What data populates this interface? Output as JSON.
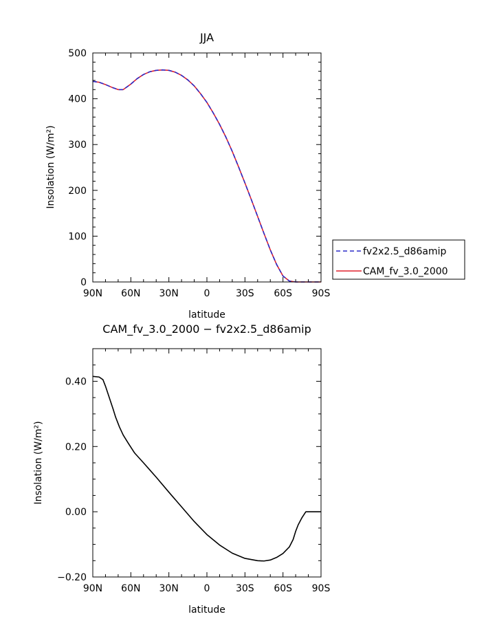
{
  "chart_data": [
    {
      "type": "line",
      "title": "JJA",
      "xlabel": "latitude",
      "ylabel": "Insolation (W/m²)",
      "xlim": [
        -90,
        90
      ],
      "ylim": [
        0,
        500
      ],
      "x_ticks": [
        -90,
        -60,
        -30,
        0,
        30,
        60,
        90
      ],
      "x_tick_labels": [
        "90N",
        "60N",
        "30N",
        "0",
        "30S",
        "60S",
        "90S"
      ],
      "y_ticks": [
        0,
        100,
        200,
        300,
        400,
        500
      ],
      "y_tick_labels": [
        "0",
        "100",
        "200",
        "300",
        "400",
        "500"
      ],
      "legend_position": "right",
      "series": [
        {
          "name": "fv2x2.5_d86amip",
          "color": "#2a2ac8",
          "dash": "dashed",
          "x": [
            -90,
            -85,
            -80,
            -75,
            -70,
            -66,
            -60,
            -55,
            -50,
            -45,
            -40,
            -35,
            -30,
            -25,
            -20,
            -15,
            -10,
            -5,
            0,
            5,
            10,
            15,
            20,
            25,
            30,
            35,
            40,
            45,
            50,
            55,
            60,
            65,
            70,
            75,
            80,
            85,
            90
          ],
          "values": [
            438,
            436,
            431,
            425,
            420,
            420,
            432,
            444,
            453,
            459,
            462,
            463,
            462,
            458,
            451,
            441,
            428,
            411,
            392,
            369,
            344,
            316,
            285,
            251,
            216,
            180,
            143,
            106,
            70,
            38,
            13,
            2,
            0,
            0,
            0,
            0,
            0
          ]
        },
        {
          "name": "CAM_fv_3.0_2000",
          "color": "#e0202c",
          "dash": "solid",
          "x": [
            -90,
            -85,
            -80,
            -75,
            -70,
            -66,
            -60,
            -55,
            -50,
            -45,
            -40,
            -35,
            -30,
            -25,
            -20,
            -15,
            -10,
            -5,
            0,
            5,
            10,
            15,
            20,
            25,
            30,
            35,
            40,
            45,
            50,
            55,
            60,
            65,
            70,
            75,
            80,
            85,
            90
          ],
          "values": [
            438,
            436,
            431,
            425,
            420,
            420,
            432,
            444,
            453,
            459,
            462,
            463,
            462,
            458,
            451,
            441,
            428,
            411,
            392,
            369,
            344,
            316,
            285,
            251,
            216,
            180,
            143,
            106,
            70,
            38,
            13,
            2,
            0,
            0,
            0,
            0,
            0
          ]
        }
      ]
    },
    {
      "type": "line",
      "title": "CAM_fv_3.0_2000 − fv2x2.5_d86amip",
      "xlabel": "latitude",
      "ylabel": "Insolation (W/m²)",
      "xlim": [
        -90,
        90
      ],
      "ylim": [
        -0.2,
        0.5
      ],
      "x_ticks": [
        -90,
        -60,
        -30,
        0,
        30,
        60,
        90
      ],
      "x_tick_labels": [
        "90N",
        "60N",
        "30N",
        "0",
        "30S",
        "60S",
        "90S"
      ],
      "y_ticks": [
        -0.2,
        0,
        0.2,
        0.4
      ],
      "y_tick_labels": [
        "−0.20",
        "0.00",
        "0.20",
        "0.40"
      ],
      "series": [
        {
          "name": "CAM_fv_3.0_2000 − fv2x2.5_d86amip",
          "color": "#000000",
          "dash": "solid",
          "x": [
            -90,
            -85,
            -82,
            -80,
            -77,
            -74,
            -72,
            -69,
            -66,
            -62,
            -57,
            -50,
            -45,
            -40,
            -30,
            -20,
            -10,
            0,
            10,
            20,
            30,
            40,
            45,
            50,
            55,
            60,
            65,
            68,
            70,
            72,
            75,
            78,
            80,
            82,
            85,
            90
          ],
          "values": [
            0.415,
            0.413,
            0.405,
            0.385,
            0.35,
            0.315,
            0.29,
            0.26,
            0.235,
            0.21,
            0.18,
            0.15,
            0.128,
            0.106,
            0.06,
            0.015,
            -0.03,
            -0.07,
            -0.102,
            -0.127,
            -0.143,
            -0.15,
            -0.151,
            -0.148,
            -0.14,
            -0.128,
            -0.108,
            -0.085,
            -0.06,
            -0.04,
            -0.018,
            0.0,
            0.0,
            0.0,
            0.0,
            0.0
          ]
        }
      ]
    }
  ]
}
